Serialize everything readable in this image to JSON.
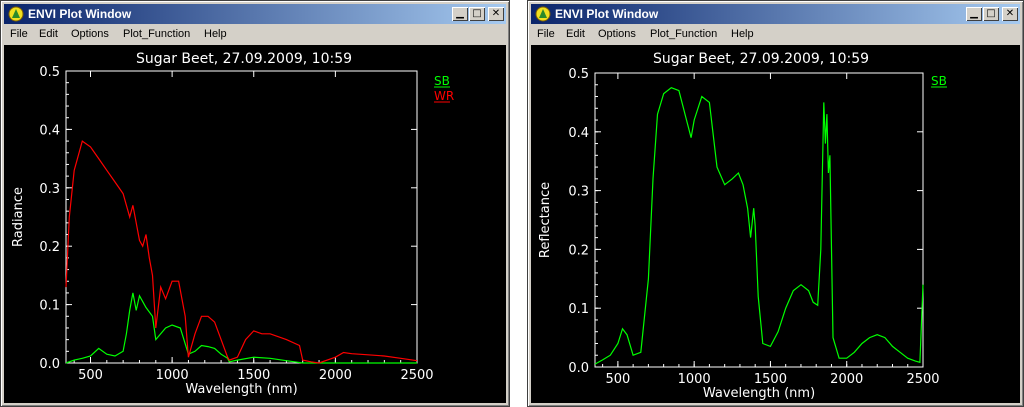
{
  "windows": [
    {
      "title": "ENVI Plot Window",
      "menu": [
        "File",
        "Edit",
        "Options",
        "Plot_Function",
        "Help"
      ],
      "plot_title": "Sugar Beet, 27.09.2009, 10:59",
      "legend": [
        "SB",
        "WR"
      ]
    },
    {
      "title": "ENVI Plot Window",
      "menu": [
        "File",
        "Edit",
        "Options",
        "Plot_Function",
        "Help"
      ],
      "plot_title": "Sugar Beet, 27.09.2009, 10:59",
      "legend": [
        "SB"
      ]
    }
  ],
  "colors": {
    "sb": "#00ff00",
    "wr": "#ff0000",
    "axes": "#ffffff",
    "background": "#000000"
  },
  "chart_data": [
    {
      "type": "line",
      "title": "Sugar Beet, 27.09.2009, 10:59",
      "xlabel": "Wavelength (nm)",
      "ylabel": "Radiance",
      "xlim": [
        350,
        2500
      ],
      "ylim": [
        0,
        0.5
      ],
      "xticks": [
        "500",
        "1000",
        "1500",
        "2000",
        "2500"
      ],
      "yticks": [
        "0.0",
        "0.1",
        "0.2",
        "0.3",
        "0.4",
        "0.5"
      ],
      "legend_placement": "top-right",
      "series": [
        {
          "name": "SB",
          "color": "#00ff00",
          "x": [
            350,
            400,
            450,
            500,
            550,
            600,
            650,
            700,
            720,
            740,
            760,
            780,
            800,
            840,
            880,
            900,
            930,
            960,
            1000,
            1050,
            1100,
            1140,
            1180,
            1220,
            1260,
            1300,
            1340,
            1350,
            1400,
            1500,
            1600,
            1700,
            1800,
            1850,
            1900,
            2000,
            2100,
            2200,
            2300,
            2400,
            2500
          ],
          "y": [
            0.0,
            0.005,
            0.008,
            0.012,
            0.025,
            0.015,
            0.012,
            0.02,
            0.05,
            0.09,
            0.12,
            0.09,
            0.115,
            0.095,
            0.08,
            0.04,
            0.05,
            0.06,
            0.065,
            0.06,
            0.015,
            0.02,
            0.03,
            0.028,
            0.025,
            0.015,
            0.008,
            0.002,
            0.005,
            0.01,
            0.008,
            0.004,
            0.0,
            0.0,
            0.0,
            0.0,
            0.0,
            0.0,
            0.0,
            0.0,
            0.0
          ]
        },
        {
          "name": "WR",
          "color": "#ff0000",
          "x": [
            350,
            370,
            400,
            450,
            500,
            550,
            600,
            650,
            700,
            720,
            740,
            760,
            780,
            800,
            820,
            840,
            860,
            880,
            900,
            930,
            960,
            1000,
            1040,
            1080,
            1100,
            1140,
            1180,
            1220,
            1260,
            1300,
            1340,
            1350,
            1400,
            1450,
            1500,
            1550,
            1600,
            1700,
            1780,
            1800,
            1850,
            1900,
            2000,
            2050,
            2100,
            2200,
            2300,
            2400,
            2500
          ],
          "y": [
            0.13,
            0.25,
            0.33,
            0.38,
            0.37,
            0.35,
            0.33,
            0.31,
            0.29,
            0.27,
            0.25,
            0.27,
            0.24,
            0.21,
            0.2,
            0.22,
            0.18,
            0.15,
            0.06,
            0.13,
            0.11,
            0.14,
            0.14,
            0.08,
            0.01,
            0.05,
            0.08,
            0.08,
            0.07,
            0.04,
            0.01,
            0.005,
            0.01,
            0.04,
            0.055,
            0.05,
            0.05,
            0.04,
            0.03,
            0.005,
            0.002,
            0.0,
            0.01,
            0.018,
            0.016,
            0.014,
            0.012,
            0.008,
            0.004
          ]
        }
      ]
    },
    {
      "type": "line",
      "title": "Sugar Beet, 27.09.2009, 10:59",
      "xlabel": "Wavelength (nm)",
      "ylabel": "Reflectance",
      "xlim": [
        350,
        2500
      ],
      "ylim": [
        0,
        0.5
      ],
      "xticks": [
        "500",
        "1000",
        "1500",
        "2000",
        "2500"
      ],
      "yticks": [
        "0.0",
        "0.1",
        "0.2",
        "0.3",
        "0.4",
        "0.5"
      ],
      "legend_placement": "top-right",
      "series": [
        {
          "name": "SB",
          "color": "#00ff00",
          "x": [
            350,
            400,
            450,
            500,
            530,
            560,
            600,
            650,
            700,
            730,
            760,
            800,
            850,
            900,
            950,
            980,
            1000,
            1050,
            1100,
            1150,
            1200,
            1250,
            1290,
            1320,
            1350,
            1370,
            1390,
            1400,
            1420,
            1450,
            1500,
            1550,
            1600,
            1650,
            1700,
            1750,
            1780,
            1810,
            1830,
            1850,
            1860,
            1870,
            1880,
            1890,
            1900,
            1910,
            1950,
            2000,
            2050,
            2100,
            2150,
            2200,
            2250,
            2300,
            2350,
            2400,
            2450,
            2480,
            2500
          ],
          "y": [
            0.005,
            0.012,
            0.02,
            0.04,
            0.065,
            0.055,
            0.02,
            0.025,
            0.15,
            0.32,
            0.43,
            0.465,
            0.475,
            0.47,
            0.42,
            0.39,
            0.42,
            0.46,
            0.45,
            0.34,
            0.31,
            0.32,
            0.33,
            0.31,
            0.27,
            0.22,
            0.27,
            0.24,
            0.12,
            0.04,
            0.035,
            0.06,
            0.1,
            0.13,
            0.14,
            0.13,
            0.11,
            0.105,
            0.2,
            0.45,
            0.38,
            0.43,
            0.33,
            0.36,
            0.2,
            0.05,
            0.015,
            0.015,
            0.025,
            0.04,
            0.05,
            0.055,
            0.05,
            0.035,
            0.025,
            0.015,
            0.01,
            0.008,
            0.14
          ]
        }
      ]
    }
  ]
}
